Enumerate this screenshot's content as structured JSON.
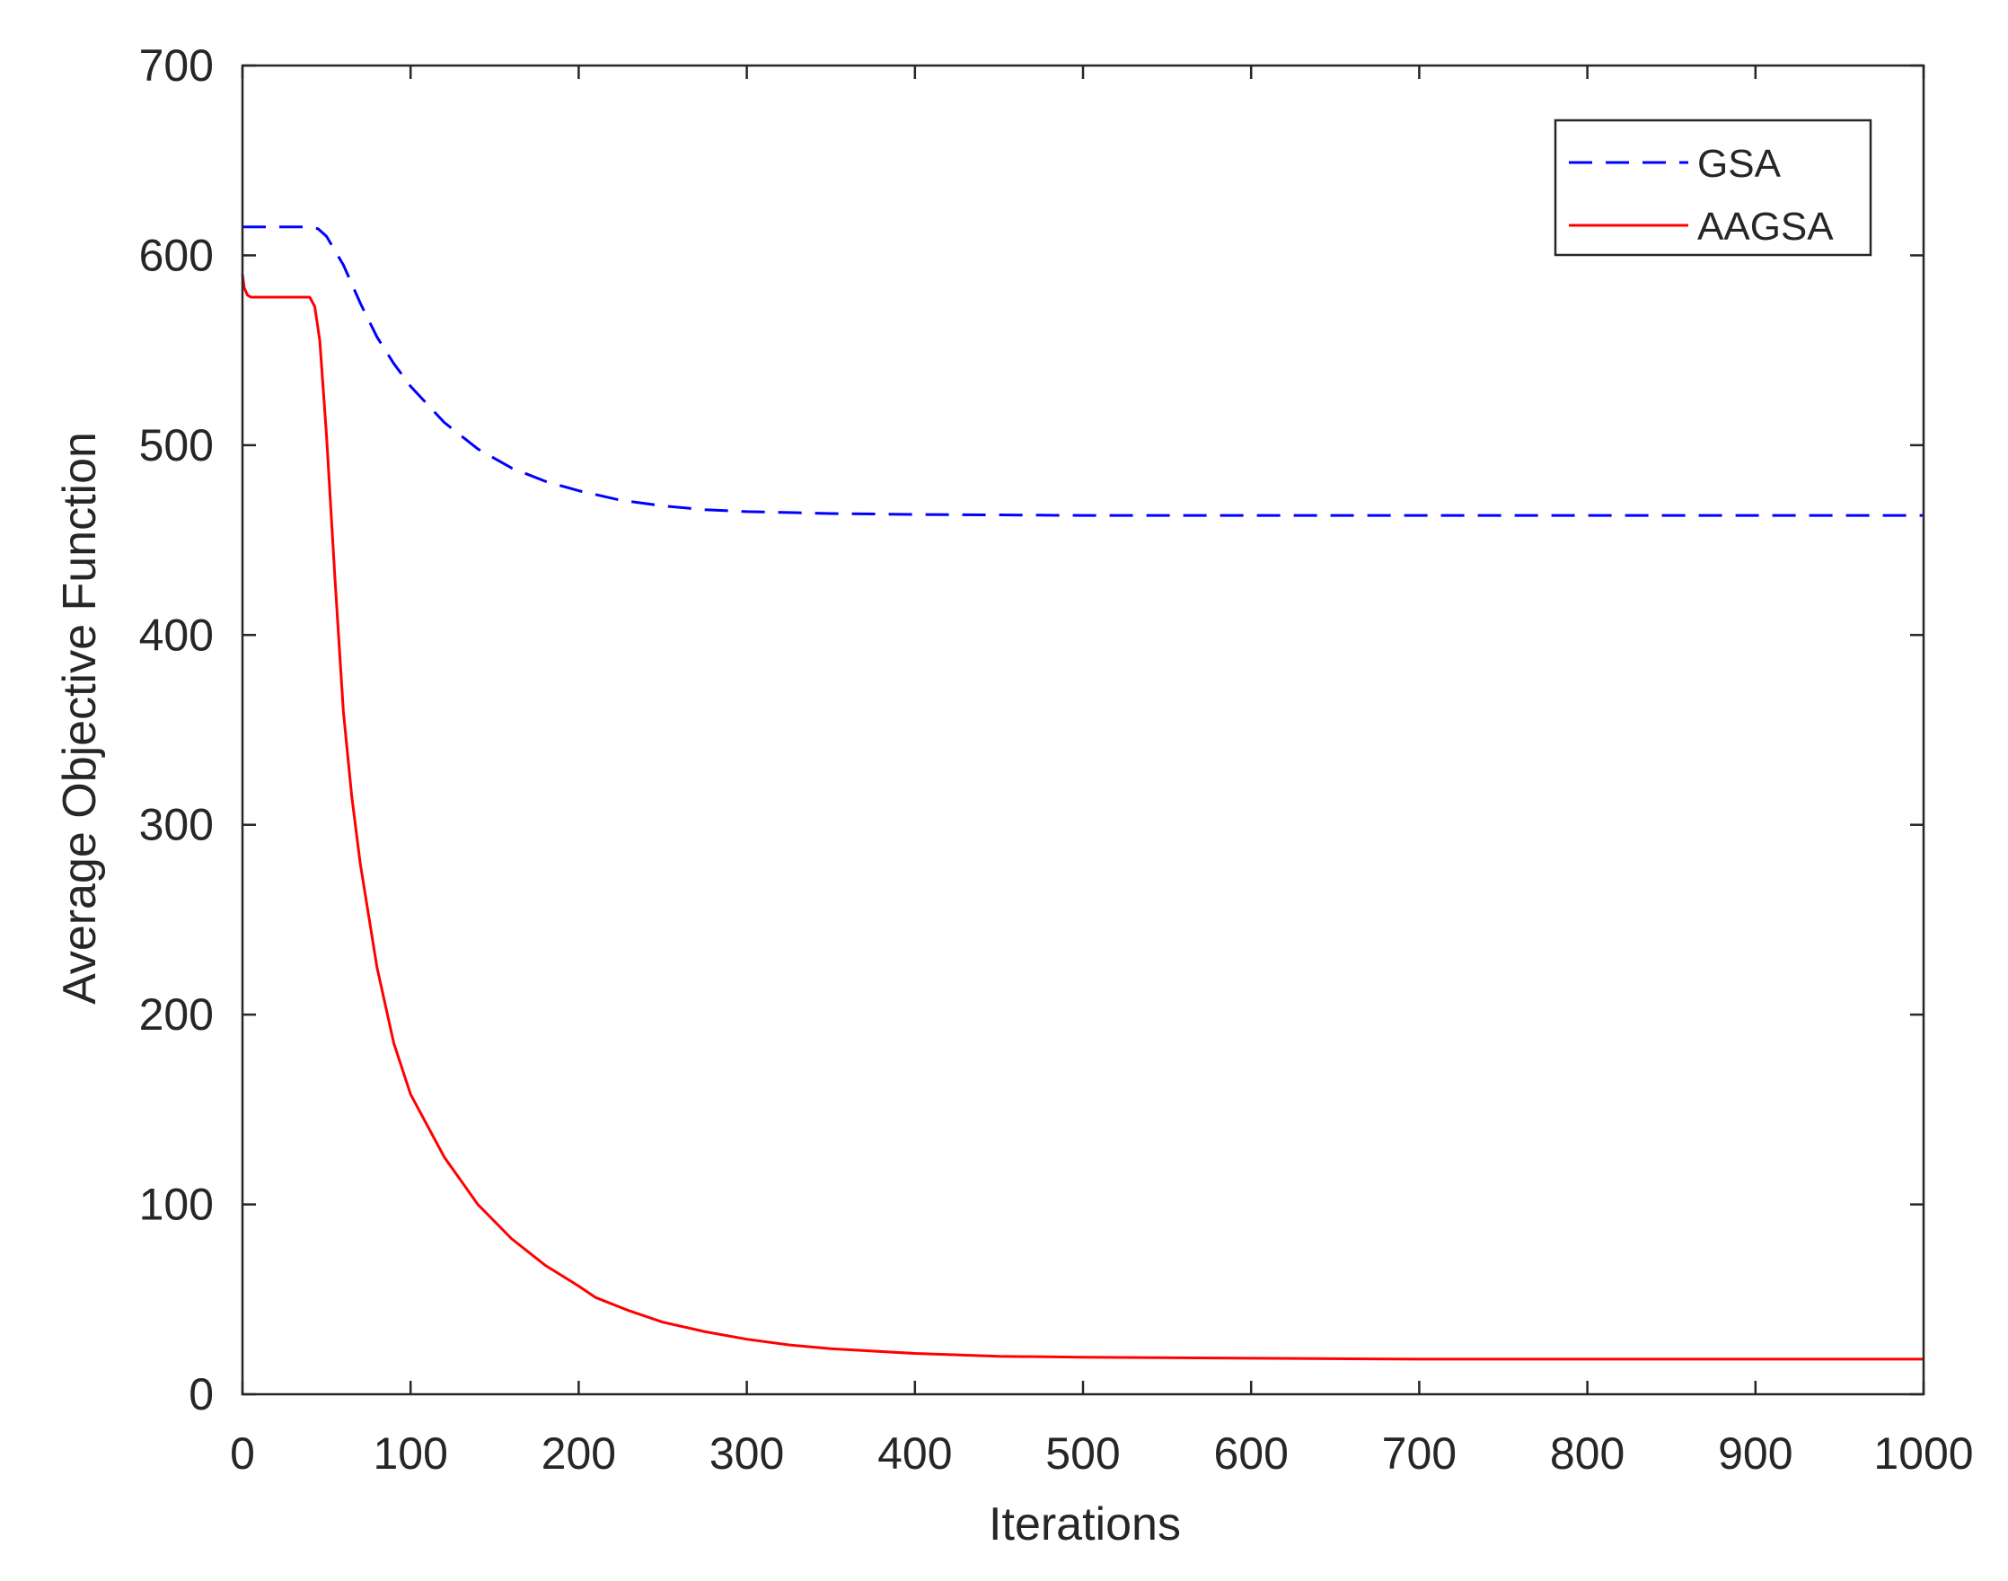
{
  "chart_data": {
    "type": "line",
    "title": "",
    "xlabel": "Iterations",
    "ylabel": "Average Objective Function",
    "xlim": [
      0,
      1000
    ],
    "ylim": [
      0,
      700
    ],
    "xticks": [
      0,
      100,
      200,
      300,
      400,
      500,
      600,
      700,
      800,
      900,
      1000
    ],
    "yticks": [
      0,
      100,
      200,
      300,
      400,
      500,
      600,
      700
    ],
    "grid": false,
    "legend_position": "top-right",
    "series": [
      {
        "name": "GSA",
        "color": "#0000ff",
        "style": "dashed",
        "x": [
          0,
          20,
          40,
          45,
          50,
          60,
          70,
          80,
          90,
          100,
          120,
          140,
          160,
          180,
          200,
          225,
          250,
          275,
          300,
          350,
          400,
          500,
          600,
          700,
          800,
          900,
          1000
        ],
        "y": [
          615,
          615,
          615,
          614,
          610,
          595,
          575,
          557,
          543,
          531,
          512,
          498,
          488,
          481,
          476,
          471,
          468,
          466,
          465,
          464,
          463.5,
          463,
          463,
          463,
          463,
          463,
          463
        ]
      },
      {
        "name": "AAGSA",
        "color": "#ff0000",
        "style": "solid",
        "x": [
          0,
          1,
          3,
          5,
          20,
          40,
          43,
          46,
          50,
          55,
          60,
          65,
          70,
          80,
          90,
          100,
          120,
          140,
          160,
          180,
          200,
          210,
          230,
          250,
          275,
          300,
          325,
          350,
          400,
          450,
          500,
          600,
          700,
          800,
          900,
          1000
        ],
        "y": [
          590,
          583,
          579,
          578,
          578,
          578,
          573,
          555,
          505,
          430,
          360,
          315,
          280,
          225,
          185,
          158,
          125,
          100,
          82,
          68,
          57,
          51,
          44,
          38,
          33,
          29,
          26,
          24,
          21.5,
          20,
          19.5,
          19,
          18.5,
          18.5,
          18.5,
          18.5
        ]
      }
    ]
  }
}
